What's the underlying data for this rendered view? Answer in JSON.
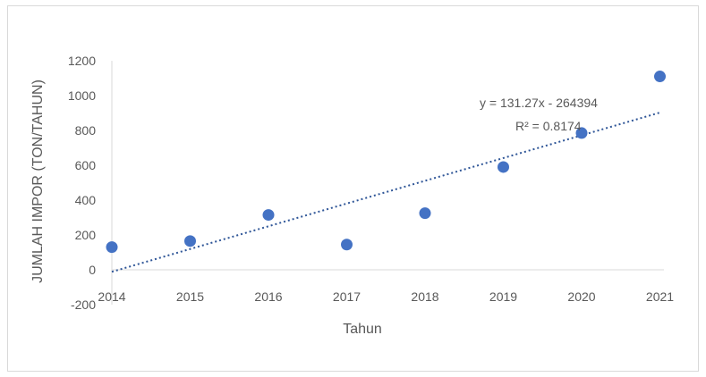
{
  "chart_data": {
    "type": "scatter",
    "xlabel": "Tahun",
    "ylabel": "JUMLAH IMPOR (TON/TAHUN)",
    "x": [
      2014,
      2015,
      2016,
      2017,
      2018,
      2019,
      2020,
      2021
    ],
    "y": [
      130,
      165,
      315,
      145,
      325,
      590,
      785,
      1110
    ],
    "ylim": [
      -200,
      1200
    ],
    "yticks": [
      -200,
      0,
      200,
      400,
      600,
      800,
      1000,
      1200
    ],
    "xtick_labels": [
      "2014",
      "2015",
      "2016",
      "2017",
      "2018",
      "2019",
      "2020",
      "2021"
    ],
    "ytick_labels": [
      "-200",
      "0",
      "200",
      "400",
      "600",
      "800",
      "1000",
      "1200"
    ],
    "marker_color": "#4472c4",
    "trendline": {
      "type": "linear",
      "slope": 131.27,
      "intercept": -264394,
      "equation": "y = 131.27x - 264394",
      "r_squared_label": "R² = 0.8174",
      "color": "#2e5597",
      "style": "dotted"
    },
    "grid": false
  }
}
